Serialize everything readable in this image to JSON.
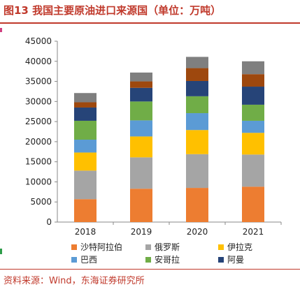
{
  "header": {
    "title": "图13  我国主要原油进口来源国（单位：万吨）"
  },
  "footer": {
    "source": "资料来源：Wind，东海证券研究所"
  },
  "chart_data": {
    "type": "bar",
    "stacked": true,
    "categories": [
      "2018",
      "2019",
      "2020",
      "2021"
    ],
    "ylim": [
      0,
      45000
    ],
    "yticks": [
      0,
      5000,
      10000,
      15000,
      20000,
      25000,
      30000,
      35000,
      40000,
      45000
    ],
    "grid": false,
    "legend_position": "bottom",
    "series": [
      {
        "name": "沙特阿拉伯",
        "color": "#ed7d31",
        "values": [
          5700,
          8300,
          8500,
          8800
        ]
      },
      {
        "name": "俄罗斯",
        "color": "#a5a5a5",
        "values": [
          7100,
          7800,
          8400,
          8000
        ]
      },
      {
        "name": "伊拉克",
        "color": "#ffc000",
        "values": [
          4500,
          5200,
          6000,
          5400
        ]
      },
      {
        "name": "巴西",
        "color": "#5b9bd5",
        "values": [
          3200,
          4000,
          4200,
          3000
        ]
      },
      {
        "name": "安哥拉",
        "color": "#70ad47",
        "values": [
          4700,
          4700,
          4200,
          4000
        ]
      },
      {
        "name": "阿曼",
        "color": "#264478",
        "values": [
          3300,
          3400,
          3800,
          4500
        ]
      },
      {
        "name": "",
        "color": "#9e480e",
        "values": [
          1300,
          1600,
          3200,
          3100
        ]
      },
      {
        "name": "",
        "color": "#7f7f7f",
        "values": [
          2300,
          2200,
          2800,
          3200
        ]
      }
    ]
  }
}
